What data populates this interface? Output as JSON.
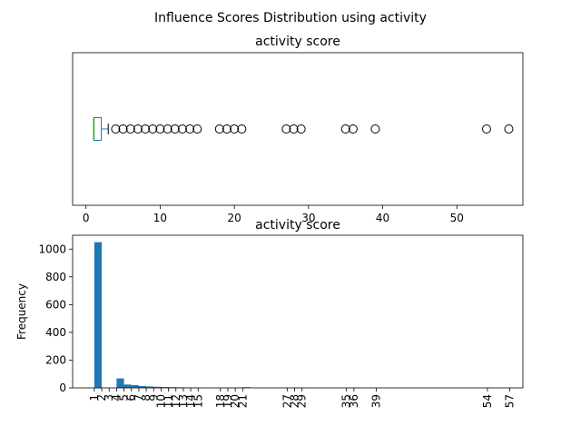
{
  "figure": {
    "suptitle": "Influence Scores Distribution using activity"
  },
  "chart_data": [
    {
      "type": "box",
      "title": "activity score",
      "xlabel": "",
      "ylabel": "",
      "xlim": [
        -1.8,
        58.9
      ],
      "xticks": [
        0,
        10,
        20,
        30,
        40,
        50
      ],
      "box": {
        "whisker_low": 1,
        "q1": 1,
        "median": 1,
        "q3": 2,
        "whisker_high": 3
      },
      "outliers": [
        4,
        5,
        6,
        7,
        8,
        9,
        10,
        11,
        12,
        13,
        14,
        15,
        18,
        19,
        20,
        21,
        27,
        28,
        29,
        35,
        36,
        39,
        54,
        57
      ]
    },
    {
      "type": "bar",
      "title": "activity score",
      "xlabel": "",
      "ylabel": "Frequency",
      "ylim": [
        0,
        1100
      ],
      "yticks": [
        0,
        200,
        400,
        600,
        800,
        1000
      ],
      "categories": [
        "1",
        "2",
        "3",
        "4",
        "5",
        "6",
        "7",
        "8",
        "9",
        "10",
        "11",
        "12",
        "13",
        "14",
        "15",
        "18",
        "19",
        "20",
        "21",
        "27",
        "28",
        "29",
        "35",
        "36",
        "39",
        "54",
        "57"
      ],
      "values": [
        1050,
        0,
        0,
        68,
        24,
        20,
        13,
        10,
        8,
        6,
        5,
        4,
        3,
        2,
        1,
        1,
        1,
        2,
        5,
        1,
        1,
        1,
        1,
        1,
        1,
        1,
        1
      ],
      "color": "#1f77b4"
    }
  ]
}
